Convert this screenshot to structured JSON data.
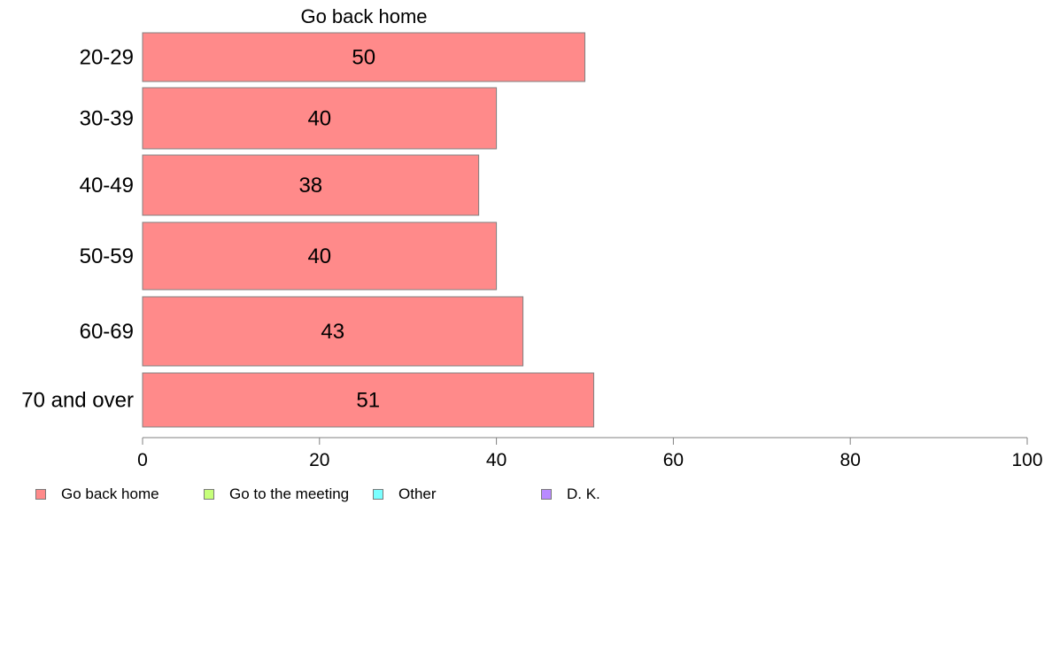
{
  "chart_data": {
    "type": "bar",
    "orientation": "horizontal",
    "title": "Go back home",
    "categories": [
      "20-29",
      "30-39",
      "40-49",
      "50-59",
      "60-69",
      "70 and over"
    ],
    "series": [
      {
        "name": "Go back home",
        "values": [
          50,
          40,
          38,
          40,
          43,
          51
        ],
        "color": "#ff8a8a"
      }
    ],
    "xlim": [
      0,
      100
    ],
    "xticks": [
      "0",
      "20",
      "40",
      "60",
      "80",
      "100"
    ],
    "grid": false,
    "legend_position": "bottom",
    "legend": [
      {
        "label": "Go back home",
        "color": "#ff8a8a"
      },
      {
        "label": "Go to the meeting",
        "color": "#c6ff7a"
      },
      {
        "label": "Other",
        "color": "#7affff"
      },
      {
        "label": "D. K.",
        "color": "#b98aff"
      }
    ],
    "bar_label_color": "#000000",
    "axis_color": "#808080"
  }
}
